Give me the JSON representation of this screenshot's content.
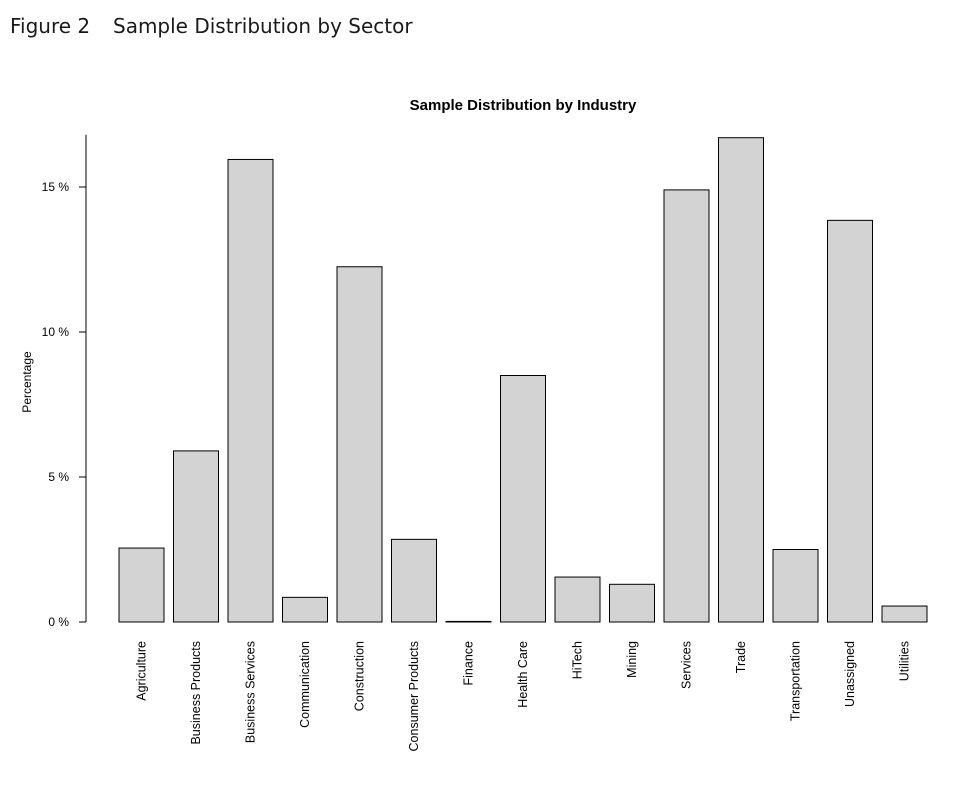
{
  "figure": {
    "number": "Figure 2",
    "caption": "Sample Distribution by Sector"
  },
  "chart_data": {
    "type": "bar",
    "title": "Sample Distribution by Industry",
    "xlabel": "",
    "ylabel": "Percentage",
    "ylim": [
      0,
      16.8
    ],
    "yticks": [
      0,
      5,
      10,
      15
    ],
    "ytick_labels": [
      "0 %",
      "5 %",
      "10 %",
      "15 %"
    ],
    "grid": false,
    "categories": [
      "Agriculture",
      "Business Products",
      "Business Services",
      "Communication",
      "Construction",
      "Consumer Products",
      "Finance",
      "Health Care",
      "HiTech",
      "Mining",
      "Services",
      "Trade",
      "Transportation",
      "Unassigned",
      "Utilities"
    ],
    "values": [
      2.55,
      5.9,
      15.95,
      0.85,
      12.25,
      2.85,
      0.02,
      8.5,
      1.55,
      1.3,
      14.9,
      16.7,
      2.5,
      13.85,
      0.55
    ],
    "bar_color": "#d3d3d3",
    "edge_color": "#000000"
  }
}
